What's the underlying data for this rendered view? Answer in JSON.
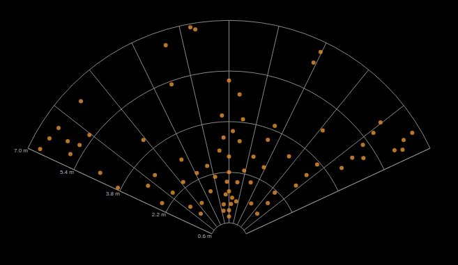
{
  "chart_data": {
    "type": "polar_scatter",
    "color": "#e0891f",
    "marker": "circle",
    "grid": true,
    "rlim": [
      0.6,
      7.0
    ],
    "rticks": [
      {
        "value": 0.6,
        "label": "0.6 m"
      },
      {
        "value": 2.2,
        "label": "2.2 m"
      },
      {
        "value": 3.8,
        "label": "3.8 m"
      },
      {
        "value": 5.4,
        "label": "5.4 m"
      },
      {
        "value": 7.0,
        "label": "7.0 m"
      }
    ],
    "thetalim": [
      -65,
      65
    ],
    "thetaticks": [
      -65,
      -52,
      -39,
      -26,
      -13,
      0,
      13,
      26,
      39,
      52,
      65
    ],
    "theta": [
      -63.8,
      -60.0,
      -56.2,
      -46.4,
      -61.0,
      -57.0,
      -52.5,
      -61.8,
      -64.0,
      -59.9,
      -48.8,
      -37.4,
      -55.2,
      -47.9,
      6.5,
      4.1,
      -10.2,
      -9.0,
      -17.8,
      25.7,
      25.2,
      56.7,
      55.6,
      54.0,
      52.9,
      51.7,
      61.0,
      59.7,
      59.2,
      49.9,
      49.2,
      48.7,
      45,
      45,
      42.9,
      -45,
      -47.7,
      -8,
      -4,
      0,
      0,
      0,
      0,
      4,
      8,
      12,
      -12,
      -16,
      16,
      -6,
      6,
      2,
      -3,
      20,
      -20,
      25,
      -25,
      0,
      3,
      -2,
      10,
      -10,
      20.8,
      21.5,
      -3.2,
      -30,
      -35,
      30,
      35,
      40,
      -40,
      58,
      62,
      -58,
      0,
      -20
    ],
    "r": [
      6.64,
      6.54,
      6.47,
      6.45,
      5.72,
      5.62,
      5.55,
      4.61,
      3.9,
      2.44,
      2.36,
      2.38,
      3.11,
      3.15,
      3.9,
      4.67,
      6.89,
      6.8,
      6.53,
      6.66,
      6.26,
      4.25,
      4.71,
      5.22,
      5.71,
      6.09,
      5.97,
      6.38,
      6.73,
      2.76,
      3.23,
      3.7,
      1.26,
      1.73,
      2.12,
      1.26,
      1.65,
      1.2,
      1.5,
      1.0,
      1.6,
      2.2,
      2.7,
      1.4,
      1.9,
      2.3,
      2.1,
      2.5,
      2.8,
      2.9,
      3.2,
      3.5,
      3.3,
      2.0,
      1.7,
      2.6,
      2.4,
      0.8,
      1.2,
      1.9,
      1.3,
      1.0,
      3.45,
      3.94,
      4.0,
      3.0,
      1.5,
      1.4,
      3.3,
      4.6,
      4.2,
      5.0,
      6.2,
      6.0,
      5.1,
      5.3
    ]
  }
}
